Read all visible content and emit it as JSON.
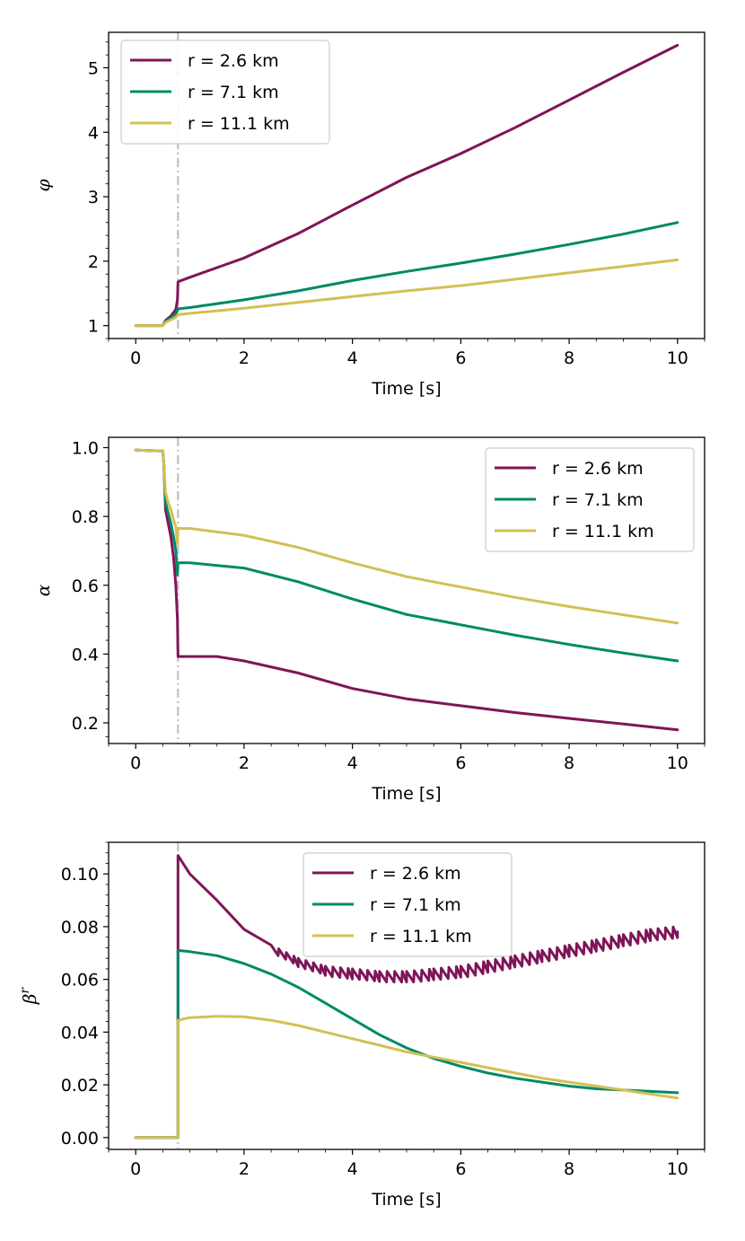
{
  "chart_data": [
    {
      "type": "line",
      "id": "phi",
      "title": "",
      "xlabel": "Time [s]",
      "ylabel": "φ",
      "xlim": [
        -0.5,
        10.5
      ],
      "ylim": [
        0.8,
        5.55
      ],
      "xticks": [
        0,
        2,
        4,
        6,
        8,
        10
      ],
      "yticks": [
        1,
        2,
        3,
        4,
        5
      ],
      "ytick_labels": [
        "1",
        "2",
        "3",
        "4",
        "5"
      ],
      "vline_x": 0.78,
      "legend_loc": "upper-left",
      "series": [
        {
          "name": "r = 2.6 km",
          "color": "#7f1558",
          "x": [
            0,
            0.5,
            0.55,
            0.65,
            0.74,
            0.77,
            0.78,
            1,
            2,
            3,
            4,
            5,
            6,
            7,
            8,
            9,
            10
          ],
          "y": [
            1.0,
            1.0,
            1.08,
            1.15,
            1.25,
            1.4,
            1.68,
            1.75,
            2.05,
            2.43,
            2.87,
            3.3,
            3.67,
            4.07,
            4.5,
            4.93,
            5.35
          ]
        },
        {
          "name": "r = 7.1 km",
          "color": "#008a66",
          "x": [
            0,
            0.5,
            0.55,
            0.65,
            0.74,
            0.78,
            1,
            2,
            3,
            4,
            5,
            6,
            7,
            8,
            9,
            10
          ],
          "y": [
            1.0,
            1.0,
            1.07,
            1.12,
            1.18,
            1.26,
            1.28,
            1.4,
            1.54,
            1.7,
            1.84,
            1.97,
            2.11,
            2.26,
            2.42,
            2.6
          ]
        },
        {
          "name": "r = 11.1 km",
          "color": "#d4bf55",
          "x": [
            0,
            0.5,
            0.55,
            0.65,
            0.74,
            0.78,
            1,
            2,
            3,
            4,
            5,
            6,
            7,
            8,
            9,
            10
          ],
          "y": [
            1.0,
            1.0,
            1.05,
            1.09,
            1.13,
            1.17,
            1.19,
            1.27,
            1.36,
            1.45,
            1.54,
            1.62,
            1.72,
            1.82,
            1.92,
            2.02
          ]
        }
      ]
    },
    {
      "type": "line",
      "id": "alpha",
      "title": "",
      "xlabel": "Time [s]",
      "ylabel": "α",
      "xlim": [
        -0.5,
        10.5
      ],
      "ylim": [
        0.14,
        1.03
      ],
      "xticks": [
        0,
        2,
        4,
        6,
        8,
        10
      ],
      "yticks": [
        0.2,
        0.4,
        0.6,
        0.8,
        1.0
      ],
      "ytick_labels": [
        "0.2",
        "0.4",
        "0.6",
        "0.8",
        "1.0"
      ],
      "vline_x": 0.78,
      "legend_loc": "upper-right",
      "series": [
        {
          "name": "r = 2.6 km",
          "color": "#7f1558",
          "x": [
            0,
            0.5,
            0.52,
            0.55,
            0.6,
            0.65,
            0.7,
            0.74,
            0.77,
            0.78,
            1,
            1.5,
            2,
            3,
            4,
            5,
            6,
            7,
            8,
            9,
            10
          ],
          "y": [
            0.993,
            0.99,
            0.95,
            0.82,
            0.78,
            0.74,
            0.68,
            0.6,
            0.5,
            0.393,
            0.393,
            0.393,
            0.38,
            0.345,
            0.3,
            0.27,
            0.25,
            0.23,
            0.213,
            0.197,
            0.18
          ]
        },
        {
          "name": "r = 7.1 km",
          "color": "#008a66",
          "x": [
            0,
            0.5,
            0.52,
            0.55,
            0.6,
            0.65,
            0.7,
            0.74,
            0.77,
            0.78,
            1,
            2,
            3,
            4,
            5,
            6,
            7,
            8,
            9,
            10
          ],
          "y": [
            0.993,
            0.99,
            0.95,
            0.84,
            0.81,
            0.78,
            0.74,
            0.7,
            0.63,
            0.665,
            0.665,
            0.65,
            0.61,
            0.56,
            0.515,
            0.485,
            0.455,
            0.428,
            0.403,
            0.38
          ]
        },
        {
          "name": "r = 11.1 km",
          "color": "#d4bf55",
          "x": [
            0,
            0.5,
            0.52,
            0.55,
            0.6,
            0.65,
            0.7,
            0.74,
            0.77,
            0.78,
            1,
            2,
            3,
            4,
            5,
            6,
            7,
            8,
            9,
            10
          ],
          "y": [
            0.993,
            0.99,
            0.95,
            0.87,
            0.84,
            0.82,
            0.79,
            0.77,
            0.72,
            0.765,
            0.765,
            0.745,
            0.71,
            0.665,
            0.625,
            0.595,
            0.565,
            0.538,
            0.514,
            0.49
          ]
        }
      ]
    },
    {
      "type": "line",
      "id": "beta",
      "title": "",
      "xlabel": "Time [s]",
      "ylabel": "β^r",
      "ylabel_base": "β",
      "ylabel_sup": "r",
      "xlim": [
        -0.5,
        10.5
      ],
      "ylim": [
        -0.0045,
        0.112
      ],
      "xticks": [
        0,
        2,
        4,
        6,
        8,
        10
      ],
      "yticks": [
        0.0,
        0.02,
        0.04,
        0.06,
        0.08,
        0.1
      ],
      "ytick_labels": [
        "0.00",
        "0.02",
        "0.04",
        "0.06",
        "0.08",
        "0.10"
      ],
      "vline_x": 0.78,
      "legend_loc": "upper-center",
      "series": [
        {
          "name": "r = 2.6 km",
          "color": "#7f1558",
          "sawtooth": 0.004,
          "saw_from": 2.2,
          "x": [
            0,
            0.78,
            0.78,
            1.0,
            1.5,
            2.0,
            2.5,
            3.0,
            3.5,
            4.0,
            4.5,
            5.0,
            5.5,
            6.0,
            6.5,
            7.0,
            7.5,
            8.0,
            8.5,
            9.0,
            9.5,
            10.0
          ],
          "y": [
            0.0,
            0.0,
            0.107,
            0.1,
            0.09,
            0.079,
            0.071,
            0.066,
            0.063,
            0.062,
            0.061,
            0.061,
            0.062,
            0.063,
            0.065,
            0.067,
            0.069,
            0.071,
            0.073,
            0.075,
            0.077,
            0.078
          ]
        },
        {
          "name": "r = 7.1 km",
          "color": "#008a66",
          "x": [
            0,
            0.78,
            0.78,
            1.0,
            1.5,
            2.0,
            2.5,
            3.0,
            3.5,
            4.0,
            4.5,
            5.0,
            5.5,
            6.0,
            6.5,
            7.0,
            7.5,
            8.0,
            8.5,
            9.0,
            9.5,
            10.0
          ],
          "y": [
            0.0,
            0.0,
            0.071,
            0.0705,
            0.069,
            0.066,
            0.062,
            0.057,
            0.051,
            0.045,
            0.039,
            0.034,
            0.03,
            0.027,
            0.0245,
            0.0225,
            0.021,
            0.0195,
            0.0185,
            0.018,
            0.0175,
            0.017
          ]
        },
        {
          "name": "r = 11.1 km",
          "color": "#d4bf55",
          "x": [
            0,
            0.78,
            0.78,
            1.0,
            1.5,
            2.0,
            2.5,
            3.0,
            3.5,
            4.0,
            4.5,
            5.0,
            5.5,
            6.0,
            6.5,
            7.0,
            7.5,
            8.0,
            8.5,
            9.0,
            9.5,
            10.0
          ],
          "y": [
            0.0,
            0.0,
            0.0445,
            0.0455,
            0.046,
            0.0458,
            0.0445,
            0.0425,
            0.04,
            0.0375,
            0.035,
            0.0325,
            0.0305,
            0.0285,
            0.0265,
            0.0245,
            0.0225,
            0.021,
            0.0195,
            0.018,
            0.0165,
            0.015
          ]
        }
      ]
    }
  ]
}
